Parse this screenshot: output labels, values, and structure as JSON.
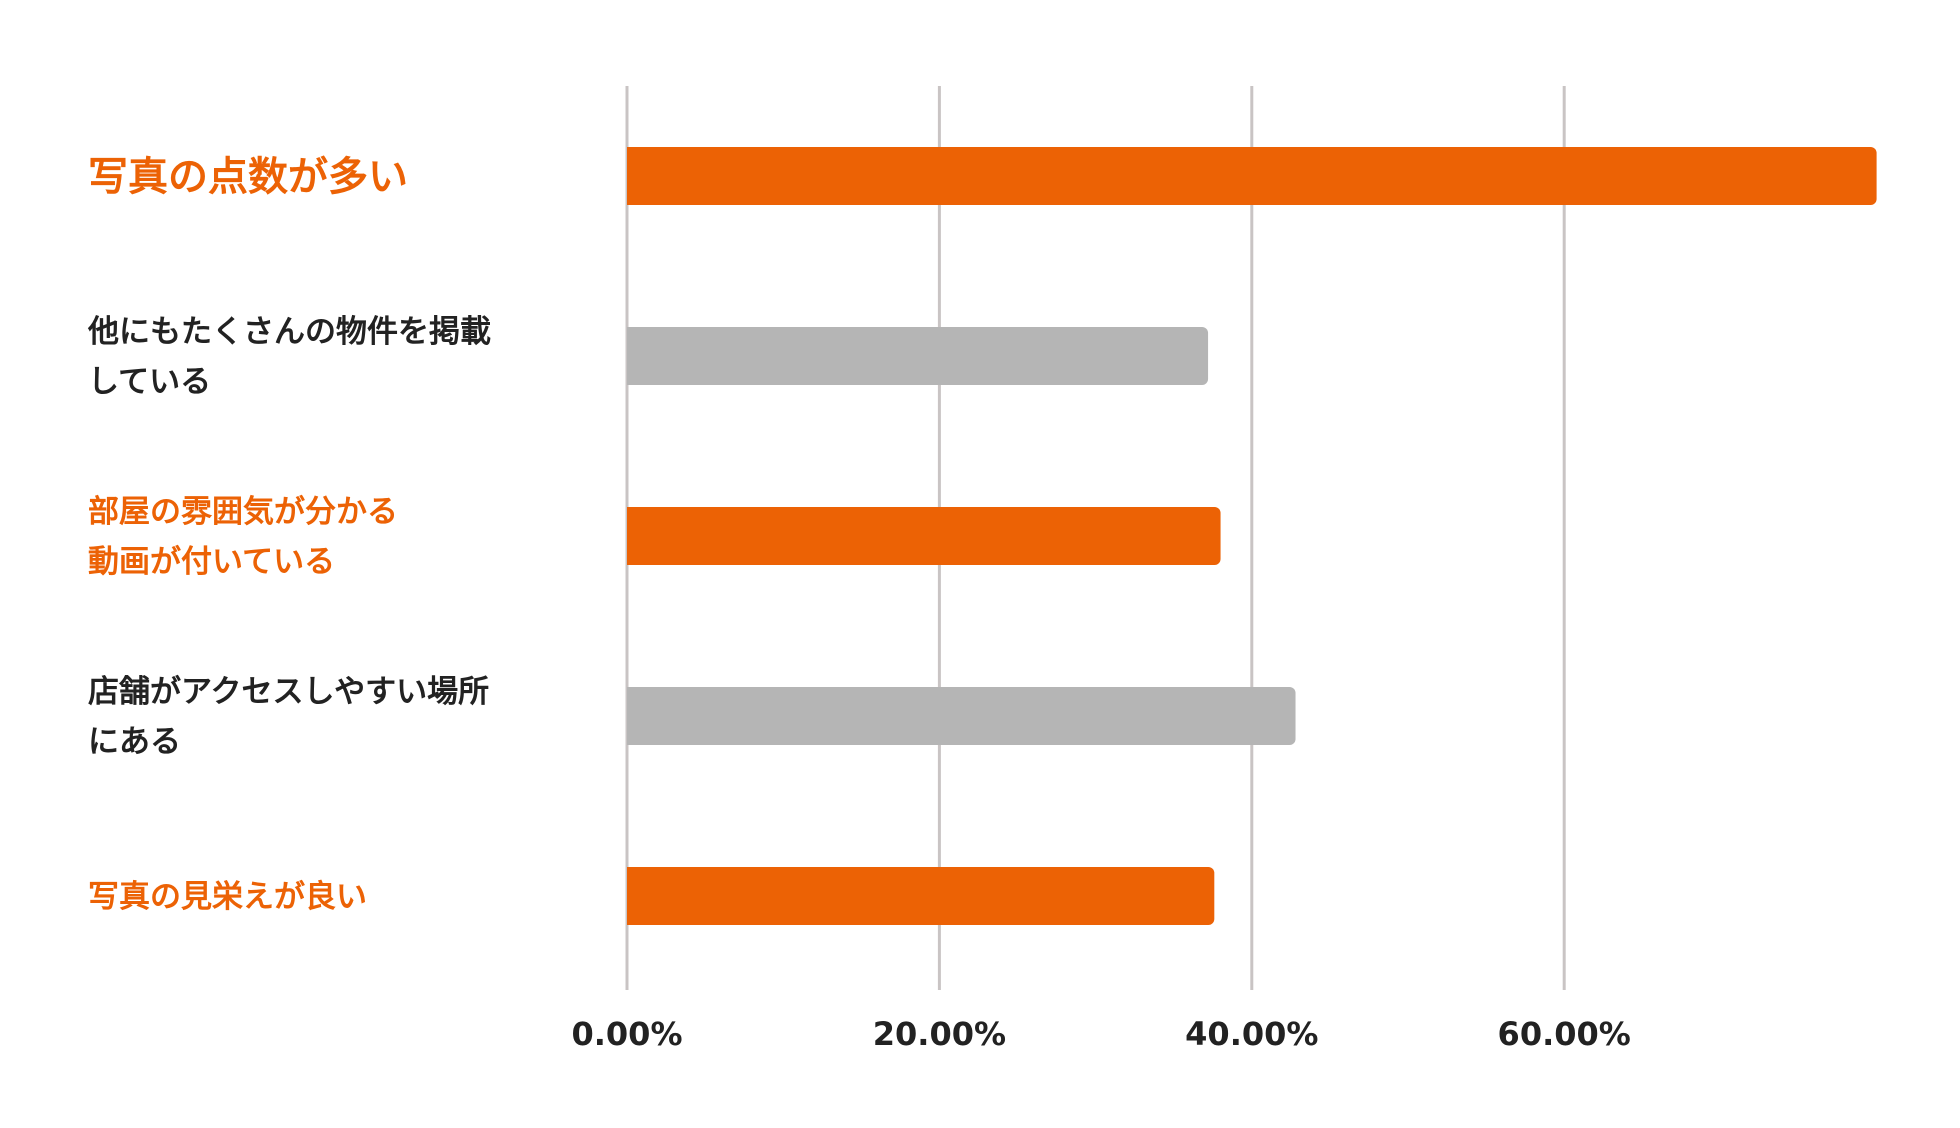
{
  "chart_data": {
    "type": "bar",
    "orientation": "horizontal",
    "categories": [
      [
        "写真の点数が多い"
      ],
      [
        "他にもたくさんの物件を掲載",
        "している"
      ],
      [
        "部屋の雰囲気が分かる",
        "動画が付いている"
      ],
      [
        "店舗がアクセスしやすい場所",
        "にある"
      ],
      [
        "写真の見栄えが良い"
      ]
    ],
    "values": [
      80,
      37.2,
      38,
      42.8,
      37.6
    ],
    "highlight": [
      true,
      false,
      true,
      false,
      true
    ],
    "x_ticks": [
      "0.00%",
      "20.00%",
      "40.00%",
      "60.00%"
    ],
    "x_tick_values": [
      0,
      20,
      40,
      60
    ],
    "xlim": [
      0,
      80
    ],
    "grid": true,
    "colors": {
      "highlight": "#EC6205",
      "normal": "#B5B5B5",
      "highlight_text": "#EC6205",
      "normal_text": "#222222",
      "grid": "#C9C4C4"
    },
    "title": "",
    "xlabel": "",
    "ylabel": ""
  }
}
